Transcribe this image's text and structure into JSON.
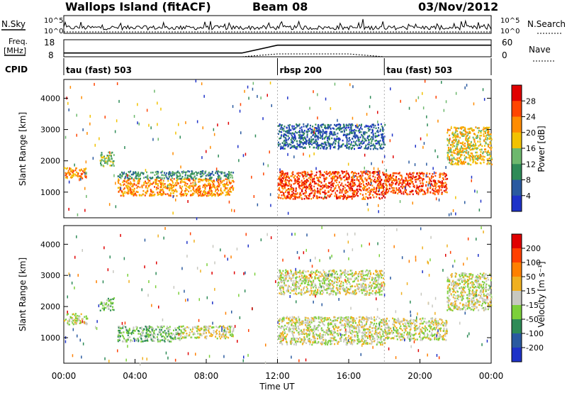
{
  "header": {
    "station": "Wallops Island (fitACF)",
    "beam": "Beam 08",
    "date": "03/Nov/2012"
  },
  "noise_panel": {
    "left_label": "N.Sky",
    "right_label": "N.Search",
    "tick_top": "10^5",
    "tick_bottom": "10^0",
    "right_tick_top": "10^5",
    "right_tick_bottom": "10^0"
  },
  "freq_panel": {
    "label_line1": "Freq.",
    "label_line2": "[MHz]",
    "right_label": "Nave",
    "left_ticks": [
      "18",
      "8"
    ],
    "right_ticks": [
      "60",
      "0"
    ],
    "freq_values": [
      10.2,
      10.2,
      10.2,
      10.2,
      10.2,
      10.2,
      14.8,
      14.8,
      14.8,
      14.8,
      14.8,
      14.8,
      14.8
    ],
    "nave_values": [
      0,
      0,
      0,
      0,
      0,
      0,
      10,
      10,
      10,
      0,
      0,
      0,
      0
    ]
  },
  "cpid": {
    "label": "CPID",
    "segments": [
      {
        "text": "tau (fast) 503",
        "start_hour": 0
      },
      {
        "text": "rbsp 200",
        "start_hour": 12
      },
      {
        "text": "tau (fast) 503",
        "start_hour": 18
      }
    ]
  },
  "power_panel": {
    "ylabel": "Slant Range [km]",
    "yticks": [
      "1000",
      "2000",
      "3000",
      "4000"
    ],
    "colorbar_label": "Power [dB]",
    "colorbar_ticks": [
      "4",
      "8",
      "12",
      "16",
      "20",
      "24",
      "28"
    ]
  },
  "velocity_panel": {
    "ylabel": "Slant Range [km]",
    "yticks": [
      "1000",
      "2000",
      "3000",
      "4000"
    ],
    "colorbar_label": "Velocity [m s⁻¹]",
    "colorbar_ticks": [
      "200",
      "100",
      "50",
      "15",
      "-15",
      "-50",
      "-100",
      "-200"
    ]
  },
  "xaxis": {
    "label": "Time UT",
    "ticks": [
      "00:00",
      "04:00",
      "08:00",
      "12:00",
      "16:00",
      "20:00",
      "00:00"
    ]
  },
  "colors": {
    "power_scale": [
      "#1e32c8",
      "#2a5aa0",
      "#2e8b57",
      "#6db86d",
      "#f2c200",
      "#ff8c00",
      "#ff4500",
      "#e00000"
    ],
    "velocity_scale": [
      "#1e32c8",
      "#2a5aa0",
      "#2e8b57",
      "#7cd03b",
      "#c8c8c0",
      "#f0b020",
      "#ff8000",
      "#ff4000",
      "#e00000"
    ]
  },
  "chart_data": {
    "type": "heatmap",
    "x_unit": "hours UT",
    "xlim": [
      0,
      24
    ],
    "ylim_km": [
      180,
      4600
    ],
    "power_bands": [
      {
        "t0": 0.0,
        "t1": 1.3,
        "r0": 1450,
        "r1": 1800,
        "level": 5
      },
      {
        "t0": 2.0,
        "t1": 2.8,
        "r0": 1850,
        "r1": 2300,
        "level": 3
      },
      {
        "t0": 3.0,
        "t1": 9.5,
        "r0": 900,
        "r1": 1450,
        "level": 5
      },
      {
        "t0": 3.0,
        "t1": 9.5,
        "r0": 1450,
        "r1": 1700,
        "level": 2
      },
      {
        "t0": 12.0,
        "t1": 18.0,
        "r0": 800,
        "r1": 1700,
        "level": 6
      },
      {
        "t0": 12.0,
        "t1": 18.0,
        "r0": 2400,
        "r1": 3200,
        "level": 1
      },
      {
        "t0": 18.0,
        "t1": 21.5,
        "r0": 950,
        "r1": 1650,
        "level": 6
      },
      {
        "t0": 21.5,
        "t1": 24.0,
        "r0": 1900,
        "r1": 3100,
        "level": 4
      }
    ],
    "velocity_bands": [
      {
        "t0": 0.0,
        "t1": 1.3,
        "r0": 1450,
        "r1": 1800,
        "level": 4
      },
      {
        "t0": 2.0,
        "t1": 2.8,
        "r0": 1900,
        "r1": 2300,
        "level": 3
      },
      {
        "t0": 3.0,
        "t1": 6.5,
        "r0": 900,
        "r1": 1400,
        "level": 3
      },
      {
        "t0": 6.5,
        "t1": 9.5,
        "r0": 1000,
        "r1": 1400,
        "level": 4
      },
      {
        "t0": 12.0,
        "t1": 18.0,
        "r0": 800,
        "r1": 1700,
        "level": 4
      },
      {
        "t0": 12.0,
        "t1": 18.0,
        "r0": 2400,
        "r1": 3200,
        "level": 4
      },
      {
        "t0": 18.0,
        "t1": 21.5,
        "r0": 950,
        "r1": 1650,
        "level": 4
      },
      {
        "t0": 21.5,
        "t1": 24.0,
        "r0": 1900,
        "r1": 3100,
        "level": 4
      }
    ]
  }
}
